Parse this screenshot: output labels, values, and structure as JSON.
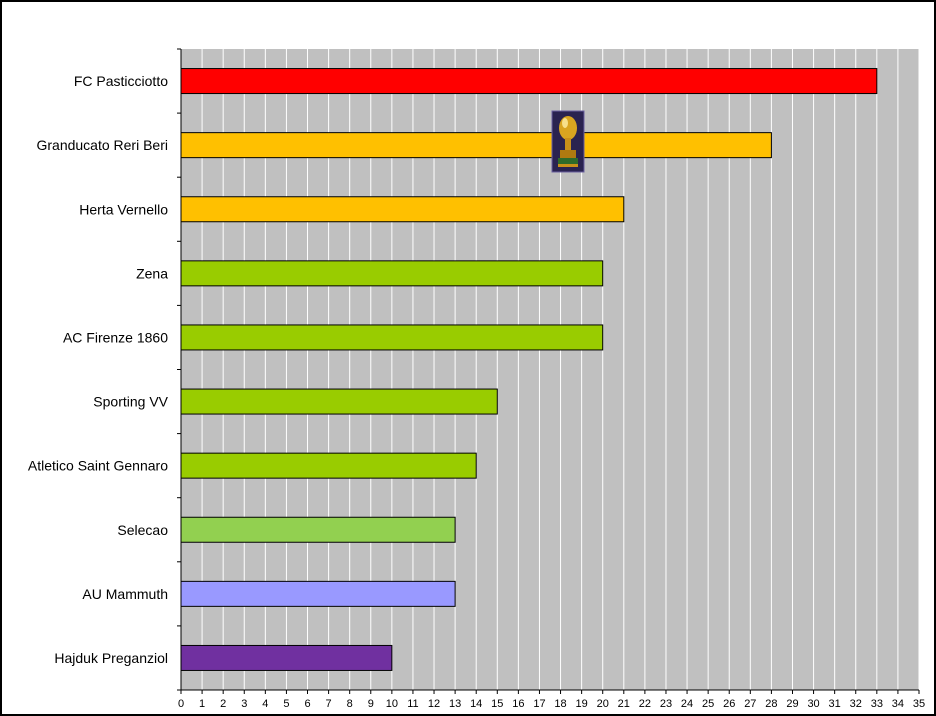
{
  "chart_data": {
    "type": "bar",
    "orientation": "horizontal",
    "title": "",
    "xlabel": "",
    "ylabel": "",
    "xlim": [
      0,
      35
    ],
    "grid": true,
    "legend": "none",
    "plot_background": "#c0c0c0",
    "gridline_color": "#ffffff",
    "categories": [
      "FC Pasticciotto",
      "Granducato Reri Beri",
      "Herta Vernello",
      "Zena",
      "AC Firenze 1860",
      "Sporting VV",
      "Atletico Saint Gennaro",
      "Selecao",
      "AU Mammuth",
      "Hajduk Preganziol"
    ],
    "values": [
      33,
      28,
      21,
      20,
      20,
      15,
      14,
      13,
      13,
      10
    ],
    "bar_colors": [
      "#ff0000",
      "#ffc000",
      "#ffc000",
      "#99cc00",
      "#99cc00",
      "#99cc00",
      "#99cc00",
      "#92d050",
      "#9999ff",
      "#7030a0"
    ],
    "x_ticks": [
      "0",
      "1",
      "2",
      "3",
      "4",
      "5",
      "6",
      "7",
      "8",
      "9",
      "10",
      "11",
      "12",
      "13",
      "14",
      "15",
      "16",
      "17",
      "18",
      "19",
      "20",
      "21",
      "22",
      "23",
      "24",
      "25",
      "26",
      "27",
      "28",
      "29",
      "30",
      "31",
      "32",
      "33",
      "34",
      "35"
    ],
    "annotation_icon": "trophy-icon"
  }
}
